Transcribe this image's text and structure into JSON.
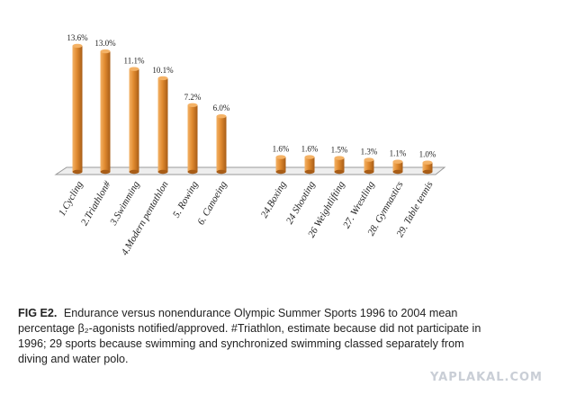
{
  "chart_data": {
    "type": "bar",
    "categories": [
      "1.Cycling",
      "2.Triathlon#",
      "3.Swimming",
      "4.Modern pentathlon",
      "5. Rowing",
      "6. Canoeing",
      "24.Boxing",
      "24 Shooting",
      "26 Weightlifting",
      "27. Wrestling",
      "28. Gymnastics",
      "29. Table tennis"
    ],
    "values": [
      13.6,
      13.0,
      11.1,
      10.1,
      7.2,
      6.0,
      1.6,
      1.6,
      1.5,
      1.3,
      1.1,
      1.0
    ],
    "value_labels": [
      "13.6%",
      "13.0%",
      "11.1%",
      "10.1%",
      "7.2%",
      "6.0%",
      "1.6%",
      "1.6%",
      "1.5%",
      "1.3%",
      "1.1%",
      "1.0%"
    ],
    "groups": [
      {
        "indices": [
          0,
          1,
          2,
          3,
          4,
          5
        ]
      },
      {
        "indices": [
          6,
          7,
          8,
          9,
          10,
          11
        ]
      }
    ],
    "ylim": [
      0,
      14
    ],
    "grid": false,
    "legend": "none",
    "title": "",
    "xlabel": "",
    "ylabel": "",
    "colors": {
      "bar_light": "#f4b266",
      "bar_main": "#e08a2f",
      "bar_dark": "#a85d17",
      "floor": "#eeeeee",
      "floor_edge": "#999999"
    }
  },
  "caption": {
    "label": "FIG E2.",
    "text": "Endurance versus nonendurance Olympic Summer Sports 1996 to 2004 mean percentage β₂-agonists notified/approved. #Triathlon, estimate because did not participate in 1996; 29 sports because swimming and synchronized swimming classed separately from diving and water polo."
  },
  "watermark": "YAPLAKAL.COM"
}
